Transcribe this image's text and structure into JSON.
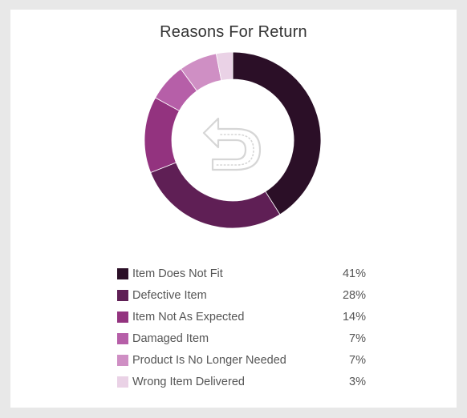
{
  "chart_data": {
    "type": "pie",
    "title": "Reasons For Return",
    "donut": true,
    "center_icon": "return-arrow-icon",
    "legend_position": "bottom",
    "categories": [
      "Item Does Not Fit",
      "Defective Item",
      "Item Not As Expected",
      "Damaged Item",
      "Product Is No Longer Needed",
      "Wrong Item Delivered"
    ],
    "values": [
      41,
      28,
      14,
      7,
      7,
      3
    ],
    "value_labels": [
      "41%",
      "28%",
      "14%",
      "7%",
      "7%",
      "3%"
    ],
    "colors": [
      "#2b0f27",
      "#5f1f55",
      "#93337f",
      "#b65fa8",
      "#cf8fc4",
      "#ead2e6"
    ]
  }
}
